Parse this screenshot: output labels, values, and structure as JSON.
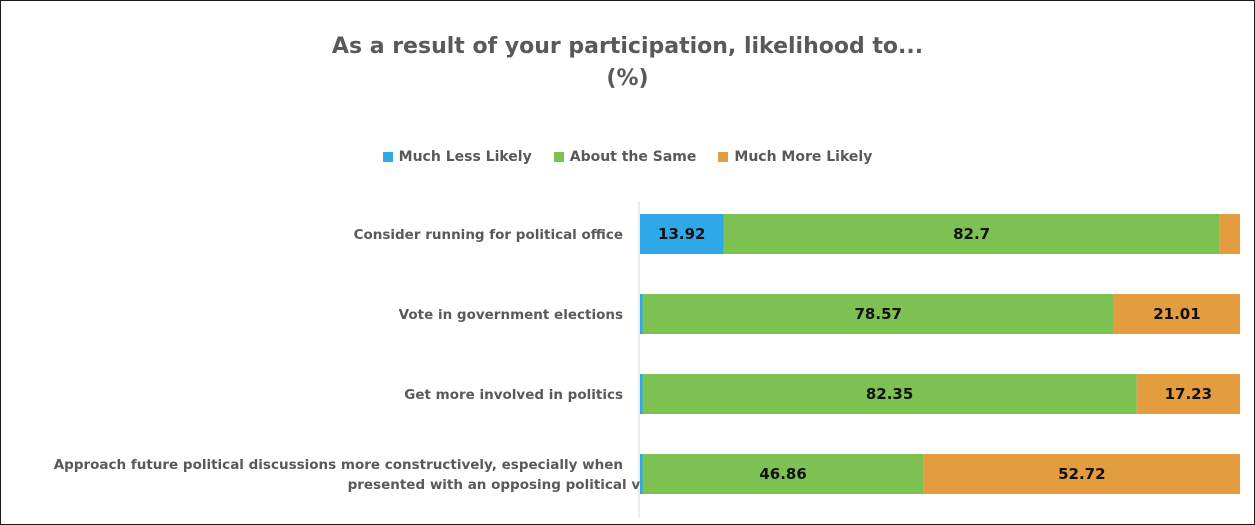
{
  "chart_data": {
    "type": "bar",
    "orientation": "horizontal",
    "stacked": true,
    "title": "As a result of your participation, likelihood to...",
    "subtitle": "(%)",
    "legend_position": "top",
    "grid": false,
    "xlim": [
      0,
      100
    ],
    "categories": [
      [
        "Consider running for political office"
      ],
      [
        "Vote in government elections"
      ],
      [
        "Get more involved in politics"
      ],
      [
        "Approach future political discussions more constructively, especially when",
        "presented with an opposing political view"
      ]
    ],
    "series": [
      {
        "name": "Much Less Likely",
        "color": "#2ea8e6",
        "values": [
          13.92,
          0.42,
          0.42,
          0.42
        ],
        "labels": [
          "13.92",
          "",
          "",
          ""
        ]
      },
      {
        "name": "About the Same",
        "color": "#7cc151",
        "values": [
          82.7,
          78.57,
          82.35,
          46.86
        ],
        "labels": [
          "82.7",
          "78.57",
          "82.35",
          "46.86"
        ]
      },
      {
        "name": "Much More Likely",
        "color": "#e39d3e",
        "values": [
          3.38,
          21.01,
          17.23,
          52.72
        ],
        "labels": [
          "",
          "21.01",
          "17.23",
          "52.72"
        ]
      }
    ]
  }
}
